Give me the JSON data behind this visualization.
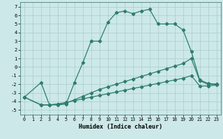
{
  "xlabel": "Humidex (Indice chaleur)",
  "background_color": "#cce8e8",
  "grid_color": "#b8d8d8",
  "line_color": "#2e7d6e",
  "xlim": [
    -0.5,
    23.5
  ],
  "ylim": [
    -5.5,
    7.5
  ],
  "yticks": [
    -5,
    -4,
    -3,
    -2,
    -1,
    0,
    1,
    2,
    3,
    4,
    5,
    6,
    7
  ],
  "xticks": [
    0,
    1,
    2,
    3,
    4,
    5,
    6,
    7,
    8,
    9,
    10,
    11,
    12,
    13,
    14,
    15,
    16,
    17,
    18,
    19,
    20,
    21,
    22,
    23
  ],
  "curve1_x": [
    0,
    2,
    3,
    4,
    5,
    6,
    7,
    8,
    9,
    10,
    11,
    12,
    13,
    14,
    15,
    16,
    17,
    18,
    19,
    20,
    21,
    22,
    23
  ],
  "curve1_y": [
    -3.5,
    -1.8,
    -4.4,
    -4.4,
    -4.3,
    -1.8,
    0.5,
    3.0,
    3.0,
    5.2,
    6.3,
    6.5,
    6.2,
    6.5,
    6.7,
    5.0,
    5.0,
    5.0,
    4.3,
    1.8,
    -1.5,
    -1.9,
    -2.0
  ],
  "curve2_x": [
    0,
    2,
    3,
    4,
    5,
    6,
    7,
    8,
    9,
    10,
    11,
    12,
    13,
    14,
    15,
    16,
    17,
    18,
    19,
    20,
    21,
    22,
    23
  ],
  "curve2_y": [
    -3.5,
    -4.4,
    -4.4,
    -4.3,
    -4.2,
    -3.8,
    -3.4,
    -3.0,
    -2.6,
    -2.3,
    -2.0,
    -1.7,
    -1.4,
    -1.1,
    -0.8,
    -0.5,
    -0.2,
    0.1,
    0.4,
    1.0,
    -1.6,
    -2.0,
    -2.0
  ],
  "curve3_x": [
    0,
    2,
    3,
    4,
    5,
    6,
    7,
    8,
    9,
    10,
    11,
    12,
    13,
    14,
    15,
    16,
    17,
    18,
    19,
    20,
    21,
    22,
    23
  ],
  "curve3_y": [
    -3.5,
    -4.4,
    -4.4,
    -4.3,
    -4.1,
    -3.9,
    -3.7,
    -3.5,
    -3.3,
    -3.1,
    -2.9,
    -2.7,
    -2.5,
    -2.3,
    -2.1,
    -1.9,
    -1.7,
    -1.5,
    -1.3,
    -1.0,
    -2.2,
    -2.2,
    -2.1
  ]
}
